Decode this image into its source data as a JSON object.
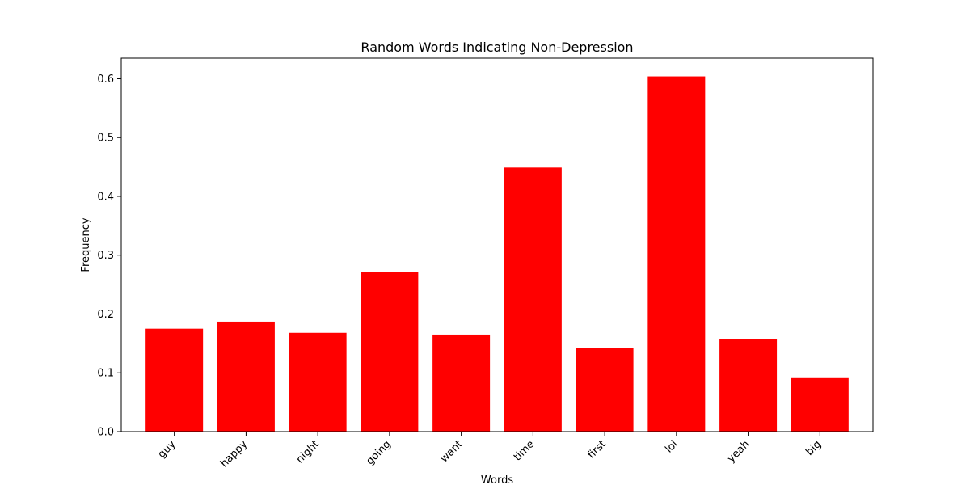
{
  "chart_data": {
    "type": "bar",
    "title": "Random Words Indicating Non-Depression",
    "xlabel": "Words",
    "ylabel": "Frequency",
    "categories": [
      "guy",
      "happy",
      "night",
      "going",
      "want",
      "time",
      "first",
      "lol",
      "yeah",
      "big"
    ],
    "values": [
      0.175,
      0.187,
      0.168,
      0.272,
      0.165,
      0.449,
      0.142,
      0.604,
      0.157,
      0.091
    ],
    "ylim": [
      0,
      0.635
    ],
    "yticks": [
      0.0,
      0.1,
      0.2,
      0.3,
      0.4,
      0.5,
      0.6
    ],
    "ytick_labels": [
      "0.0",
      "0.1",
      "0.2",
      "0.3",
      "0.4",
      "0.5",
      "0.6"
    ],
    "bar_color": "#ff0000",
    "grid": false,
    "legend": "none"
  }
}
